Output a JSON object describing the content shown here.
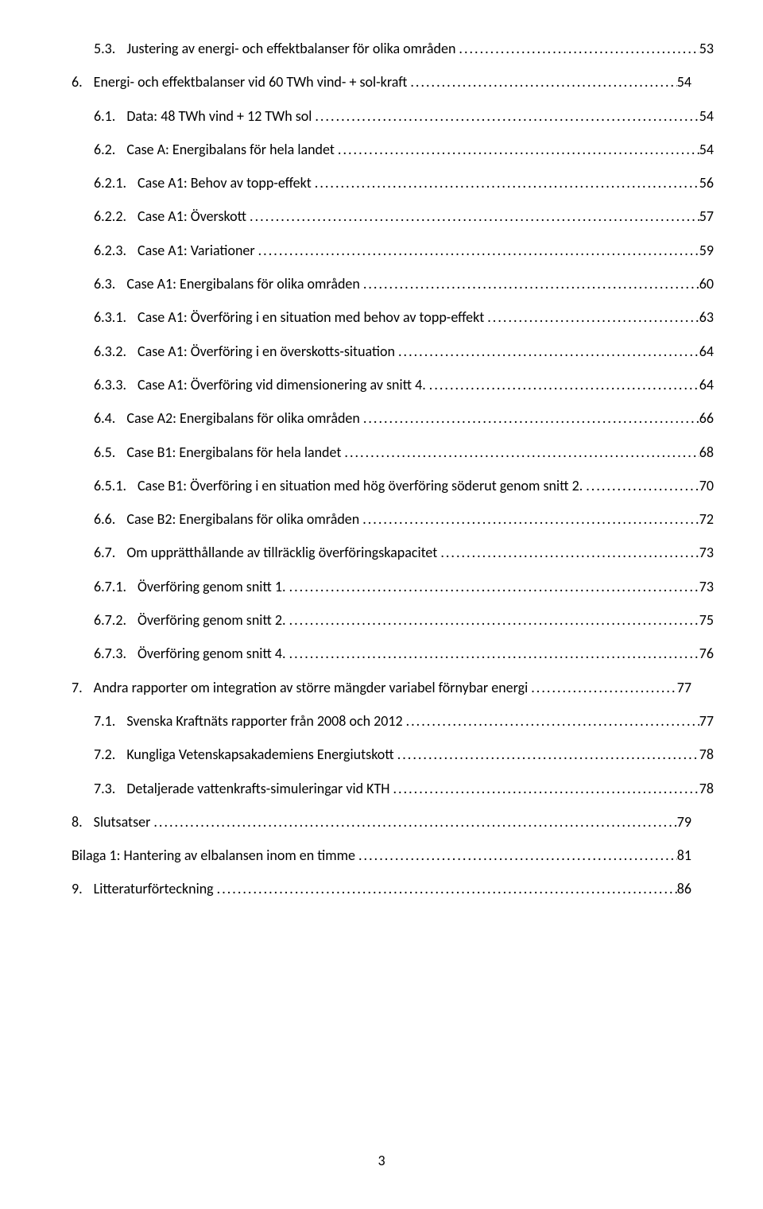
{
  "page_number": "3",
  "leader_char": ".",
  "toc": [
    {
      "indent": 1,
      "num": "5.3.",
      "label": "Justering av energi- och effektbalanser för olika områden",
      "page": "53"
    },
    {
      "indent": 0,
      "num": "6.",
      "label": "Energi- och effektbalanser vid 60 TWh vind- + sol-kraft",
      "page": "54"
    },
    {
      "indent": 1,
      "num": "6.1.",
      "label": "Data: 48 TWh vind + 12 TWh sol",
      "page": "54"
    },
    {
      "indent": 1,
      "num": "6.2.",
      "label": "Case A: Energibalans för hela landet",
      "page": "54"
    },
    {
      "indent": 2,
      "num": "6.2.1.",
      "label": "Case A1: Behov av topp-effekt",
      "page": "56"
    },
    {
      "indent": 2,
      "num": "6.2.2.",
      "label": "Case A1: Överskott",
      "page": "57"
    },
    {
      "indent": 2,
      "num": "6.2.3.",
      "label": "Case A1: Variationer",
      "page": "59"
    },
    {
      "indent": 1,
      "num": "6.3.",
      "label": "Case A1: Energibalans för olika områden",
      "page": "60"
    },
    {
      "indent": 2,
      "num": "6.3.1.",
      "label": "Case A1: Överföring i en situation med behov av topp-effekt",
      "page": "63"
    },
    {
      "indent": 2,
      "num": "6.3.2.",
      "label": "Case A1: Överföring i en överskotts-situation",
      "page": "64"
    },
    {
      "indent": 2,
      "num": "6.3.3.",
      "label": "Case A1: Överföring vid dimensionering av snitt 4.",
      "page": "64"
    },
    {
      "indent": 1,
      "num": "6.4.",
      "label": "Case A2: Energibalans för olika områden",
      "page": "66"
    },
    {
      "indent": 1,
      "num": "6.5.",
      "label": "Case B1: Energibalans för hela landet",
      "page": "68"
    },
    {
      "indent": 2,
      "num": "6.5.1.",
      "label": "Case B1: Överföring i en situation med hög överföring söderut genom snitt 2.",
      "page": "70"
    },
    {
      "indent": 1,
      "num": "6.6.",
      "label": "Case B2: Energibalans för olika områden",
      "page": "72"
    },
    {
      "indent": 1,
      "num": "6.7.",
      "label": "Om upprätthållande av tillräcklig överföringskapacitet",
      "page": "73"
    },
    {
      "indent": 2,
      "num": "6.7.1.",
      "label": "Överföring genom snitt 1.",
      "page": "73"
    },
    {
      "indent": 2,
      "num": "6.7.2.",
      "label": "Överföring genom snitt 2.",
      "page": "75"
    },
    {
      "indent": 2,
      "num": "6.7.3.",
      "label": "Överföring genom snitt 4.",
      "page": "76"
    },
    {
      "indent": 0,
      "num": "7.",
      "label": "Andra rapporter om integration av större mängder variabel förnybar energi",
      "page": "77"
    },
    {
      "indent": 1,
      "num": "7.1.",
      "label": "Svenska Kraftnäts rapporter från 2008 och 2012",
      "page": "77"
    },
    {
      "indent": 1,
      "num": "7.2.",
      "label": "Kungliga Vetenskapsakademiens Energiutskott",
      "page": "78"
    },
    {
      "indent": 1,
      "num": "7.3.",
      "label": "Detaljerade vattenkrafts-simuleringar vid KTH",
      "page": "78"
    },
    {
      "indent": 0,
      "num": "8.",
      "label": "Slutsatser",
      "page": "79"
    },
    {
      "indent": 0,
      "num": "",
      "label": "Bilaga 1: Hantering av elbalansen inom en timme",
      "page": "81"
    },
    {
      "indent": 0,
      "num": "9.",
      "label": "Litteraturförteckning",
      "page": "86"
    }
  ]
}
